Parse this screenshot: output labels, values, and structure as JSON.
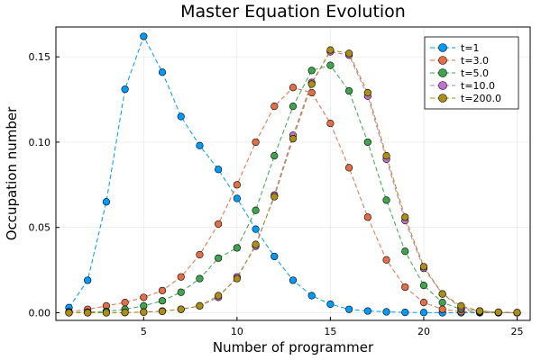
{
  "chart_data": {
    "type": "line",
    "title": "Master Equation Evolution",
    "xlabel": "Number of programmer",
    "ylabel": "Occupation number",
    "xlim": [
      0.3,
      25.7
    ],
    "ylim": [
      -0.0045,
      0.1675
    ],
    "xticks": [
      5,
      10,
      15,
      20,
      25
    ],
    "xtick_labels": [
      "5",
      "10",
      "15",
      "20",
      "25"
    ],
    "yticks": [
      0,
      0.05,
      0.1,
      0.15
    ],
    "ytick_labels": [
      "0.00",
      "0.05",
      "0.10",
      "0.15"
    ],
    "grid": true,
    "legend_position": "top-right",
    "line_style": "dashed",
    "marker": "circle",
    "x": [
      1,
      2,
      3,
      4,
      5,
      6,
      7,
      8,
      9,
      10,
      11,
      12,
      13,
      14,
      15,
      16,
      17,
      18,
      19,
      20,
      21,
      22,
      23,
      24,
      25
    ],
    "series": [
      {
        "name": "t=1",
        "color": "#009AFA",
        "values": [
          0.003,
          0.019,
          0.065,
          0.131,
          0.162,
          0.141,
          0.115,
          0.098,
          0.084,
          0.067,
          0.049,
          0.033,
          0.019,
          0.01,
          0.005,
          0.002,
          0.001,
          0.0005,
          0.0002,
          0.0001,
          0,
          0,
          0,
          0,
          0
        ]
      },
      {
        "name": "t=3.0",
        "color": "#E36F47",
        "values": [
          0.0005,
          0.002,
          0.004,
          0.006,
          0.009,
          0.013,
          0.021,
          0.034,
          0.052,
          0.075,
          0.1,
          0.121,
          0.132,
          0.129,
          0.111,
          0.085,
          0.056,
          0.031,
          0.015,
          0.006,
          0.002,
          0.0006,
          0.0002,
          0,
          0
        ]
      },
      {
        "name": "t=5.0",
        "color": "#3EA44E",
        "values": [
          0.0001,
          0.0003,
          0.0008,
          0.002,
          0.004,
          0.007,
          0.012,
          0.02,
          0.032,
          0.038,
          0.06,
          0.092,
          0.121,
          0.142,
          0.145,
          0.13,
          0.1,
          0.066,
          0.036,
          0.016,
          0.006,
          0.002,
          0.0005,
          0.0001,
          0
        ]
      },
      {
        "name": "t=10.0",
        "color": "#C271D2",
        "values": [
          0,
          0,
          0,
          0.0001,
          0.0004,
          0.001,
          0.002,
          0.004,
          0.009,
          0.021,
          0.039,
          0.069,
          0.104,
          0.135,
          0.153,
          0.151,
          0.127,
          0.09,
          0.054,
          0.026,
          0.011,
          0.003,
          0.001,
          0.0002,
          0
        ]
      },
      {
        "name": "t=200.0",
        "color": "#AC8D18",
        "values": [
          0,
          0,
          0,
          0.0001,
          0.0003,
          0.0008,
          0.002,
          0.004,
          0.01,
          0.02,
          0.04,
          0.068,
          0.102,
          0.134,
          0.154,
          0.152,
          0.129,
          0.092,
          0.056,
          0.027,
          0.011,
          0.004,
          0.001,
          0.0003,
          0.0001
        ]
      }
    ]
  }
}
